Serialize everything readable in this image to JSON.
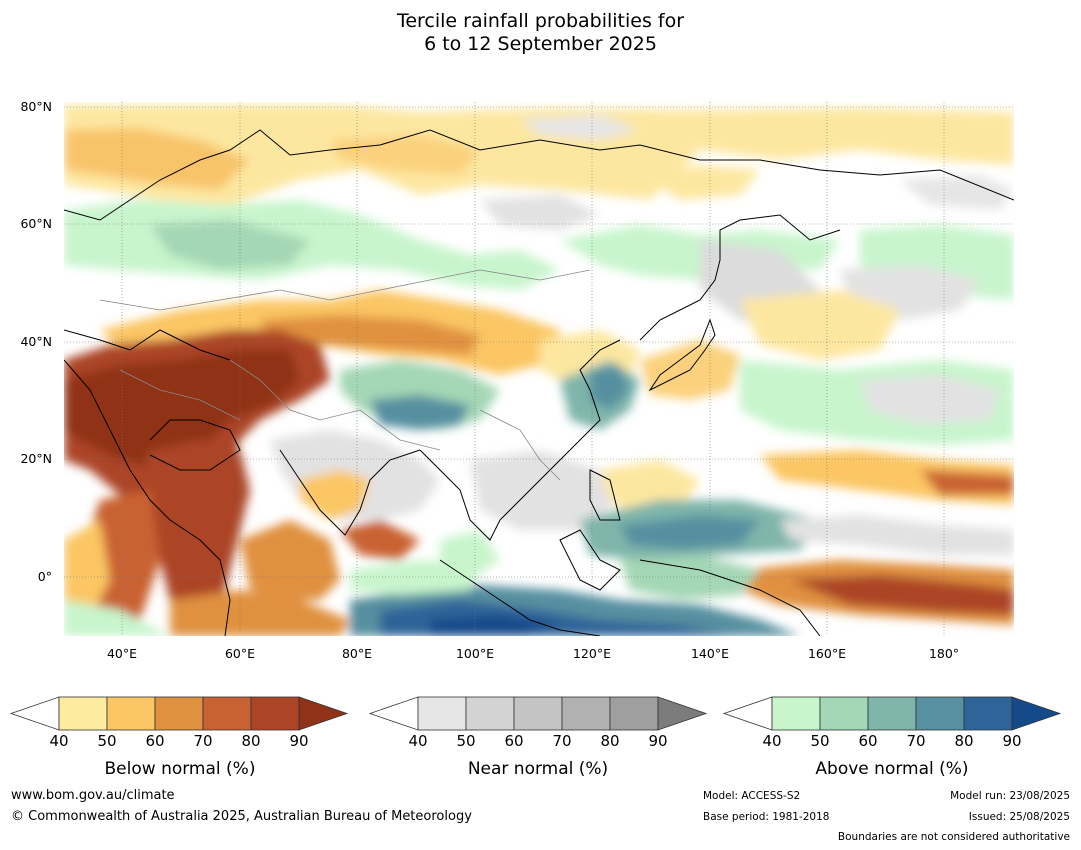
{
  "title": {
    "line1": "Tercile rainfall probabilities for",
    "line2": "6 to 12 September 2025"
  },
  "map": {
    "lat_labels": [
      "80°N",
      "60°N",
      "40°N",
      "20°N",
      "0°"
    ],
    "lon_labels": [
      "40°E",
      "60°E",
      "80°E",
      "100°E",
      "120°E",
      "140°E",
      "160°E",
      "180°"
    ]
  },
  "colorbars": [
    {
      "name": "below",
      "title": "Below normal (%)",
      "ticks": [
        "40",
        "50",
        "60",
        "70",
        "80",
        "90"
      ],
      "colors": [
        "#fdeba0",
        "#fbc664",
        "#e09140",
        "#c96233",
        "#ac4526"
      ],
      "extend_color": "#8f3218"
    },
    {
      "name": "near",
      "title": "Near normal (%)",
      "ticks": [
        "40",
        "50",
        "60",
        "70",
        "80",
        "90"
      ],
      "colors": [
        "#e6e6e6",
        "#d3d3d3",
        "#c4c4c4",
        "#b1b1b1",
        "#9f9f9f"
      ],
      "extend_color": "#7c7c7c"
    },
    {
      "name": "above",
      "title": "Above normal (%)",
      "ticks": [
        "40",
        "50",
        "60",
        "70",
        "80",
        "90"
      ],
      "colors": [
        "#c8f5cc",
        "#a4d7b5",
        "#7fb5aa",
        "#5790a0",
        "#2f6498"
      ],
      "extend_color": "#14498a"
    }
  ],
  "footer": {
    "website": "www.bom.gov.au/climate",
    "copyright": "© Commonwealth of Australia 2025, Australian Bureau of Meteorology",
    "model": "Model: ACCESS-S2",
    "base_period": "Base period: 1981-2018",
    "model_run": "Model run: 23/08/2025",
    "issued": "Issued: 25/08/2025",
    "disclaimer": "Boundaries are not considered authoritative"
  }
}
